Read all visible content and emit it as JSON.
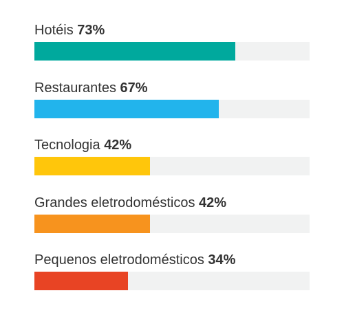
{
  "chart_data": {
    "type": "bar",
    "orientation": "horizontal",
    "unit": "%",
    "xlim": [
      0,
      100
    ],
    "categories": [
      "Hotéis",
      "Restaurantes",
      "Tecnologia",
      "Grandes eletrodomésticos",
      "Pequenos eletrodomésticos"
    ],
    "values": [
      73,
      67,
      42,
      42,
      34
    ],
    "value_labels": [
      "73%",
      "67%",
      "42%",
      "42%",
      "34%"
    ],
    "colors": [
      "#00a99d",
      "#22b4ec",
      "#ffc60b",
      "#f7931e",
      "#e84424"
    ],
    "track_color": "#f1f2f2"
  }
}
